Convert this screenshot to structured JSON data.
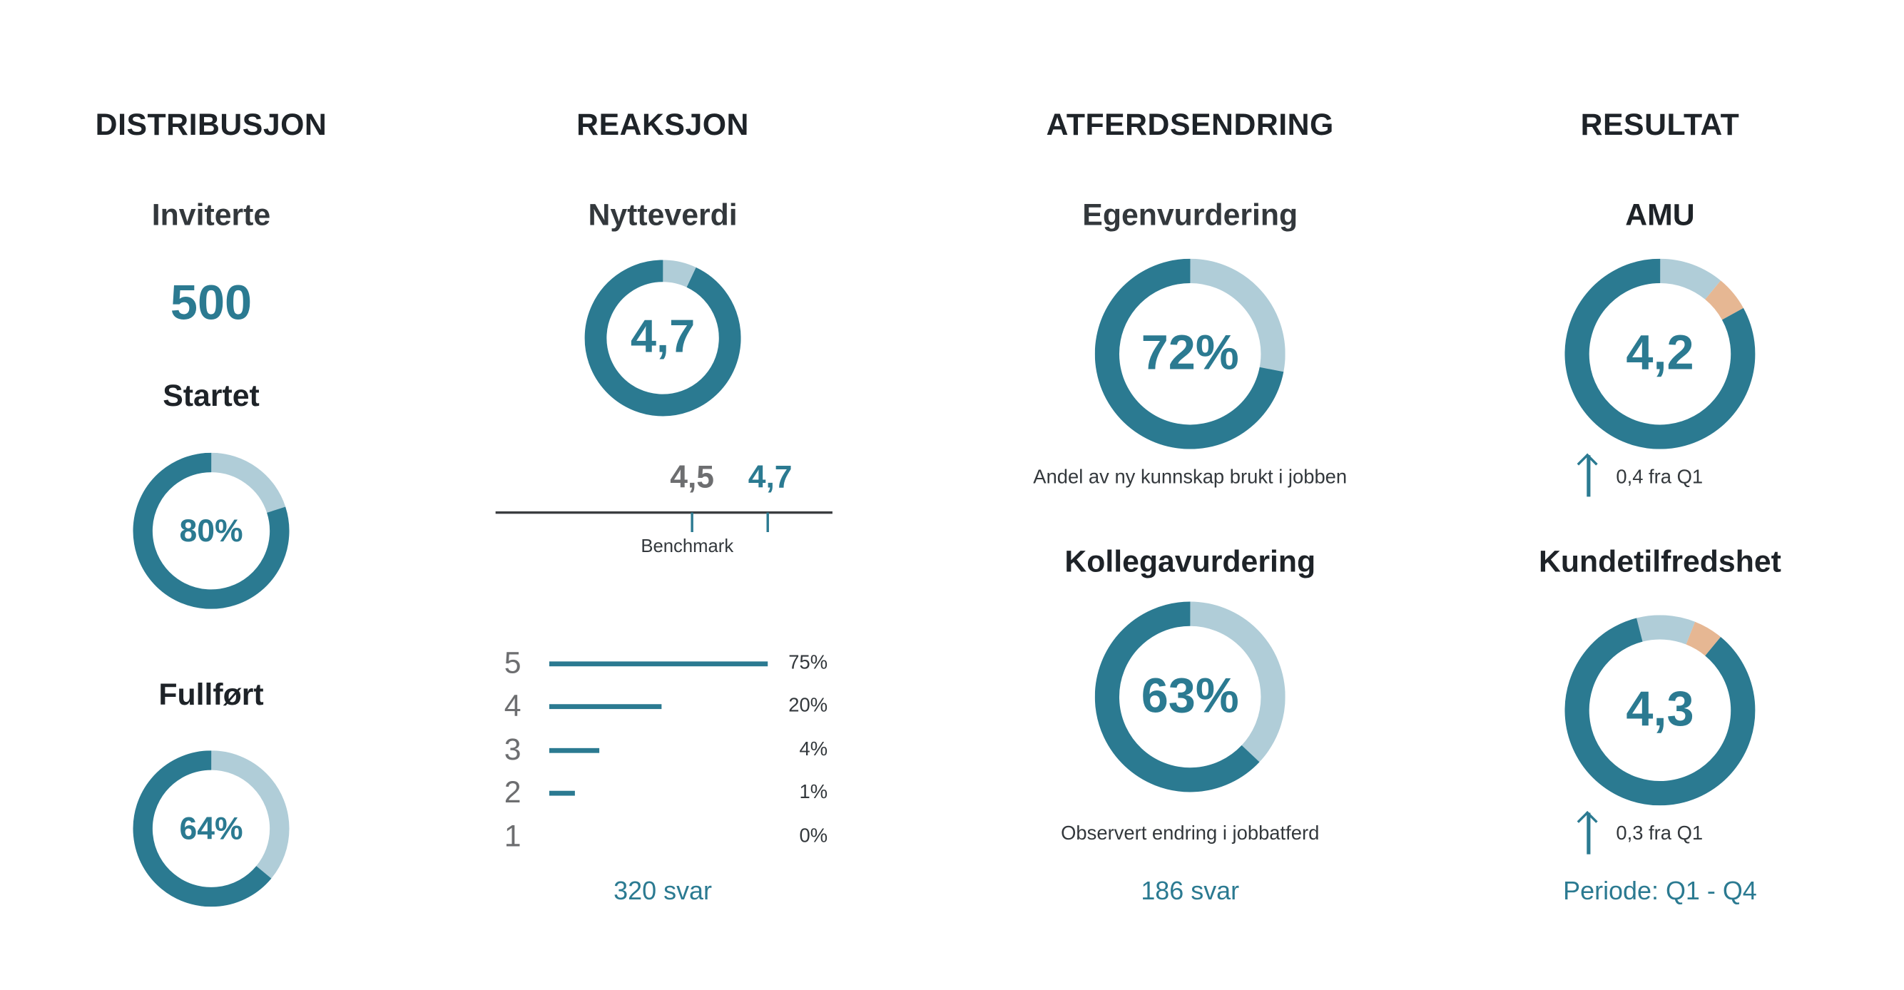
{
  "colors": {
    "primary": "#2b7a91",
    "light": "#b0cdd8",
    "accent": "#e6b793",
    "text": "#1e2328",
    "muted": "#6d6e70"
  },
  "columns": {
    "distribusjon": {
      "title": "DISTRIBUSJON",
      "invited_label": "Inviterte",
      "invited_value": "500",
      "started_label": "Startet",
      "completed_label": "Fullført"
    },
    "reaksjon": {
      "title": "REAKSJON",
      "metric_label": "Nytteverdi",
      "benchmark_value": "4,5",
      "score_value": "4,7",
      "benchmark_label": "Benchmark",
      "responses": "320 svar"
    },
    "atferdsendring": {
      "title": "ATFERDSENDRING",
      "self_label": "Egenvurdering",
      "self_caption": "Andel av ny kunnskap brukt i jobben",
      "peer_label": "Kollegavurdering",
      "peer_caption": "Observert endring i jobbatferd",
      "responses": "186 svar"
    },
    "resultat": {
      "title": "RESULTAT",
      "amu_label": "AMU",
      "amu_change": "0,4 fra Q1",
      "customer_label": "Kundetilfredshet",
      "customer_change": "0,3 fra Q1",
      "period": "Periode: Q1 - Q4",
      "trend_icon": "arrow-up-icon"
    }
  },
  "chart_data": [
    {
      "type": "pie",
      "name": "Startet",
      "label": "80%",
      "segments": [
        {
          "value": 20,
          "color": "#b0cdd8"
        },
        {
          "value": 80,
          "color": "#2b7a91"
        }
      ]
    },
    {
      "type": "pie",
      "name": "Fullført",
      "label": "64%",
      "segments": [
        {
          "value": 36,
          "color": "#b0cdd8"
        },
        {
          "value": 64,
          "color": "#2b7a91"
        }
      ]
    },
    {
      "type": "pie",
      "name": "Nytteverdi",
      "label": "4,7",
      "segments": [
        {
          "value": 7,
          "color": "#b0cdd8"
        },
        {
          "value": 93,
          "color": "#2b7a91"
        }
      ]
    },
    {
      "type": "pie",
      "name": "Egenvurdering",
      "label": "72%",
      "segments": [
        {
          "value": 28,
          "color": "#b0cdd8"
        },
        {
          "value": 72,
          "color": "#2b7a91"
        }
      ]
    },
    {
      "type": "pie",
      "name": "Kollegavurdering",
      "label": "63%",
      "segments": [
        {
          "value": 37,
          "color": "#b0cdd8"
        },
        {
          "value": 63,
          "color": "#2b7a91"
        }
      ]
    },
    {
      "type": "pie",
      "name": "AMU",
      "label": "4,2",
      "segments": [
        {
          "value": 11,
          "color": "#b0cdd8"
        },
        {
          "value": 6,
          "color": "#e6b793"
        },
        {
          "value": 83,
          "color": "#2b7a91"
        }
      ]
    },
    {
      "type": "pie",
      "name": "Kundetilfredshet",
      "label": "4,3",
      "segments": [
        {
          "value": 10,
          "color": "#b0cdd8"
        },
        {
          "value": 5,
          "color": "#e6b793"
        },
        {
          "value": 85,
          "color": "#2b7a91"
        }
      ]
    },
    {
      "type": "bar",
      "orientation": "horizontal",
      "categories": [
        "5",
        "4",
        "3",
        "2",
        "1"
      ],
      "values": [
        75,
        20,
        4,
        1,
        0
      ],
      "labels": [
        "75%",
        "20%",
        "4%",
        "1%",
        "0%"
      ]
    }
  ]
}
